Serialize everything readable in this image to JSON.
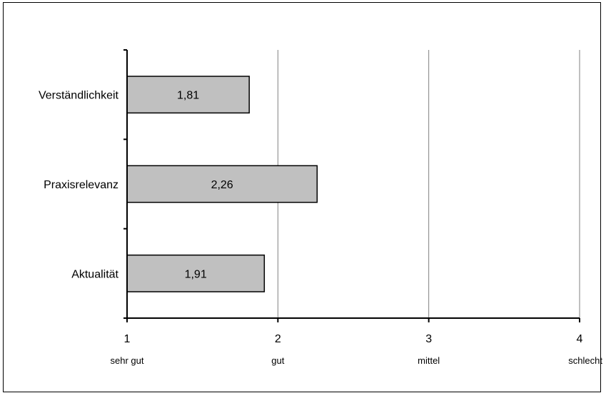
{
  "chart_data": {
    "type": "bar",
    "orientation": "horizontal",
    "categories": [
      "Verständlichkeit",
      "Praxisrelevanz",
      "Aktualität"
    ],
    "values": [
      1.81,
      2.26,
      1.91
    ],
    "value_labels": [
      "1,81",
      "2,26",
      "1,91"
    ],
    "xlim": [
      1,
      4
    ],
    "x_ticks": [
      1,
      2,
      3,
      4
    ],
    "x_tick_labels": [
      "1",
      "2",
      "3",
      "4"
    ],
    "x_tick_sublabels": [
      "sehr gut",
      "gut",
      "mittel",
      "schlecht"
    ],
    "grid": true,
    "bar_color": "#c0c0c0",
    "bar_edge_color": "#000000",
    "gridline_color": "#808080"
  }
}
